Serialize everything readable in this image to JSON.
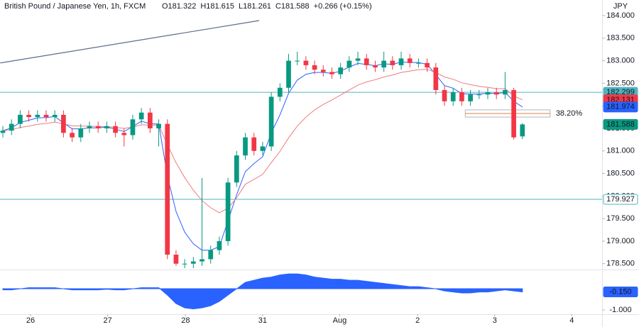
{
  "chart_data": {
    "type": "candlestick",
    "title": "British Pound / Japanese Yen, 1h, FXCM",
    "quote": [
      "O181.322",
      "H181.615",
      "L181.261",
      "C181.588",
      "+0.266 (+0.15%)"
    ],
    "currency": "JPY",
    "up_color": "#089981",
    "down_color": "#f23645",
    "open": [
      181.4,
      181.45,
      181.6,
      181.8,
      181.75,
      181.8,
      181.75,
      181.8,
      181.4,
      181.3,
      181.5,
      181.55,
      181.5,
      181.55,
      181.4,
      181.35,
      181.7,
      181.85,
      181.5,
      181.6,
      178.7,
      178.5,
      178.5,
      178.55,
      178.6,
      178.8,
      179.0,
      180.3,
      180.9,
      181.3,
      181.0,
      181.1,
      182.2,
      182.4,
      183.0,
      183.0,
      182.9,
      182.8,
      182.75,
      182.7,
      182.85,
      183.0,
      183.05,
      182.9,
      182.85,
      183.0,
      182.9,
      183.05,
      182.95,
      182.95,
      182.85,
      182.35,
      182.1,
      182.3,
      182.1,
      182.25,
      182.25,
      182.3,
      182.25,
      182.35,
      181.322
    ],
    "high": [
      181.55,
      181.7,
      181.9,
      181.9,
      181.9,
      181.9,
      181.9,
      181.9,
      181.5,
      181.6,
      181.65,
      181.65,
      181.65,
      181.65,
      181.5,
      181.8,
      181.95,
      181.95,
      181.7,
      181.7,
      178.8,
      178.6,
      178.65,
      180.4,
      178.9,
      179.1,
      180.4,
      181.0,
      181.4,
      181.4,
      181.2,
      182.3,
      182.5,
      183.15,
      183.2,
      183.1,
      183.0,
      182.9,
      182.85,
      182.95,
      183.1,
      183.2,
      183.15,
      183.0,
      183.2,
      183.1,
      183.2,
      183.15,
      183.05,
      183.05,
      182.95,
      182.45,
      182.4,
      182.4,
      182.35,
      182.35,
      182.4,
      182.4,
      182.75,
      182.4,
      181.615
    ],
    "low": [
      181.3,
      181.35,
      181.5,
      181.65,
      181.65,
      181.65,
      181.65,
      181.3,
      181.2,
      181.2,
      181.4,
      181.4,
      181.4,
      181.3,
      181.1,
      181.25,
      181.6,
      181.4,
      181.1,
      178.6,
      178.45,
      178.4,
      178.4,
      178.45,
      178.5,
      178.7,
      178.9,
      180.2,
      180.8,
      180.9,
      180.9,
      181.0,
      182.1,
      182.3,
      182.9,
      182.8,
      182.7,
      182.65,
      182.6,
      182.6,
      182.75,
      182.9,
      182.8,
      182.75,
      182.75,
      182.8,
      182.8,
      182.85,
      182.85,
      182.75,
      182.25,
      182.0,
      182.0,
      182.0,
      182.0,
      182.15,
      182.15,
      182.15,
      182.15,
      181.25,
      181.261
    ],
    "close": [
      181.45,
      181.6,
      181.8,
      181.75,
      181.8,
      181.75,
      181.8,
      181.4,
      181.3,
      181.5,
      181.55,
      181.5,
      181.55,
      181.4,
      181.35,
      181.7,
      181.85,
      181.5,
      181.6,
      178.7,
      178.5,
      178.5,
      178.55,
      178.6,
      178.8,
      179.0,
      180.3,
      180.9,
      181.3,
      181.0,
      181.1,
      182.2,
      182.4,
      183.0,
      183.0,
      182.9,
      182.8,
      182.75,
      182.7,
      182.85,
      183.0,
      183.05,
      182.9,
      182.85,
      183.0,
      182.9,
      183.05,
      182.95,
      182.95,
      182.85,
      182.35,
      182.1,
      182.3,
      182.1,
      182.25,
      182.25,
      182.3,
      182.25,
      182.35,
      181.3,
      181.588
    ],
    "series": [
      {
        "color": "#2962ff",
        "values": [
          181.45,
          181.51,
          181.63,
          181.68,
          181.73,
          181.74,
          181.76,
          181.62,
          181.49,
          181.49,
          181.51,
          181.51,
          181.53,
          181.48,
          181.43,
          181.54,
          181.66,
          181.6,
          181.6,
          180.44,
          179.66,
          179.2,
          178.94,
          178.8,
          178.8,
          178.88,
          179.45,
          180.03,
          180.54,
          180.72,
          180.87,
          181.4,
          181.8,
          182.28,
          182.57,
          182.7,
          182.74,
          182.74,
          182.72,
          182.77,
          182.86,
          182.94,
          182.92,
          182.89,
          182.93,
          182.92,
          182.97,
          182.96,
          182.96,
          182.92,
          182.69,
          182.45,
          182.39,
          182.27,
          182.26,
          182.26,
          182.28,
          182.27,
          182.3,
          182.1,
          181.974
        ]
      },
      {
        "color": "#f07a7e",
        "values": [
          181.45,
          181.47,
          181.52,
          181.55,
          181.59,
          181.61,
          181.64,
          181.6,
          181.56,
          181.55,
          181.55,
          181.54,
          181.54,
          181.52,
          181.5,
          181.53,
          181.58,
          181.57,
          181.57,
          181.14,
          180.74,
          180.41,
          180.13,
          179.9,
          179.74,
          179.63,
          179.73,
          179.96,
          180.26,
          180.37,
          180.48,
          180.74,
          180.99,
          181.29,
          181.55,
          181.75,
          181.91,
          182.03,
          182.13,
          182.24,
          182.35,
          182.46,
          182.53,
          182.58,
          182.64,
          182.68,
          182.74,
          182.77,
          182.8,
          182.81,
          182.74,
          182.64,
          182.59,
          182.51,
          182.47,
          182.43,
          182.41,
          182.38,
          182.38,
          182.22,
          182.131
        ]
      }
    ],
    "hlines": [
      {
        "value": 182.299,
        "color": "#4fb3bf"
      },
      {
        "value": 179.927,
        "color": "#4fb3bf"
      }
    ],
    "trendline": {
      "x": [
        -0.3,
        29.6
      ],
      "y": [
        182.95,
        183.89
      ],
      "color": "#5d6b8a"
    },
    "fib": {
      "label": "38.20%",
      "level": 181.83,
      "top": 181.91,
      "bottom": 181.75,
      "x": [
        53.4,
        63.2
      ],
      "color": "#e0823d"
    },
    "xlim": [
      -0.33,
      69.2
    ],
    "ylim": [
      178.37,
      184.346
    ],
    "xticks": [
      {
        "value": 3.2,
        "label": "26"
      },
      {
        "value": 12.1,
        "label": "27"
      },
      {
        "value": 21.1,
        "label": "28"
      },
      {
        "value": 30,
        "label": "31"
      },
      {
        "value": 38.9,
        "label": "Aug"
      },
      {
        "value": 47.9,
        "label": "2"
      },
      {
        "value": 56.8,
        "label": "3"
      },
      {
        "value": 65.7,
        "label": "4"
      }
    ],
    "yticks": [
      {
        "value": 178.5,
        "label": "178.500"
      },
      {
        "value": 179,
        "label": "179.000"
      },
      {
        "value": 179.5,
        "label": "179.500"
      },
      {
        "value": 180,
        "label": "180.000"
      },
      {
        "value": 180.5,
        "label": "180.500"
      },
      {
        "value": 181,
        "label": "181.000"
      },
      {
        "value": 181.5,
        "label": "181.500"
      },
      {
        "value": 182,
        "label": "182.000"
      },
      {
        "value": 182.5,
        "label": "182.500"
      },
      {
        "value": 183,
        "label": "183.000"
      },
      {
        "value": 183.5,
        "label": "183.500"
      },
      {
        "value": 184,
        "label": "184.000"
      }
    ],
    "oscillator": {
      "color": "#2962ff",
      "values": [
        -0.05,
        -0.05,
        0.0,
        0.05,
        0.05,
        0.05,
        0.05,
        0.0,
        -0.05,
        -0.05,
        -0.05,
        -0.05,
        -0.02,
        -0.05,
        -0.05,
        0.0,
        0.05,
        0.05,
        0.05,
        -0.3,
        -0.7,
        -0.9,
        -0.95,
        -0.9,
        -0.8,
        -0.6,
        -0.3,
        0.0,
        0.3,
        0.4,
        0.5,
        0.55,
        0.65,
        0.7,
        0.7,
        0.65,
        0.55,
        0.5,
        0.45,
        0.45,
        0.4,
        0.4,
        0.35,
        0.3,
        0.25,
        0.2,
        0.15,
        0.1,
        0.1,
        0.05,
        0.0,
        -0.1,
        -0.15,
        -0.2,
        -0.2,
        -0.15,
        -0.15,
        -0.1,
        -0.05,
        -0.1,
        -0.15
      ],
      "last_value_label": "-0.150",
      "ylim": [
        -1.2,
        0.87
      ],
      "yticks": [
        {
          "value": -1,
          "label": "-1.000"
        }
      ]
    }
  }
}
